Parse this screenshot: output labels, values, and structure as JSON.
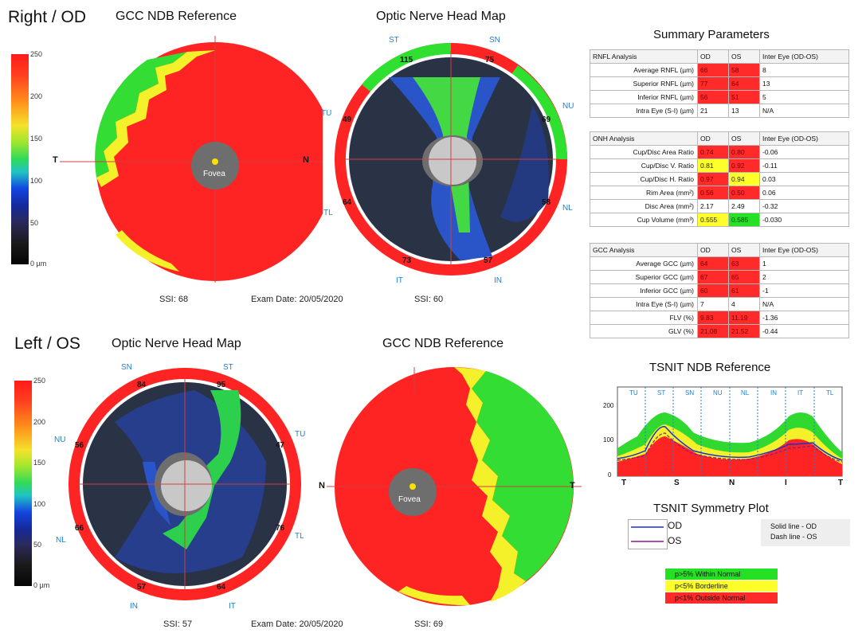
{
  "right_eye": {
    "title": "Right / OD",
    "gcc_panel": {
      "title": "GCC NDB Reference",
      "T": "T",
      "N": "N",
      "fovea": "Fovea",
      "ssi": "SSI: 68"
    },
    "onh_panel": {
      "title": "Optic Nerve Head Map",
      "ssi": "SSI: 60",
      "sectors": {
        "ST": "ST",
        "SN": "SN",
        "NU": "NU",
        "NL": "NL",
        "IN": "IN",
        "IT": "IT",
        "TL": "TL",
        "TU": "TU"
      },
      "values": {
        "top_left": "115",
        "top_right": "75",
        "right_upper": "69",
        "right_lower": "58",
        "bottom_right": "57",
        "bottom_left": "73",
        "left_lower": "64",
        "left_upper": "49"
      }
    },
    "exam_date": "Exam Date: 20/05/2020"
  },
  "left_eye": {
    "title": "Left / OS",
    "onh_panel": {
      "title": "Optic Nerve Head Map",
      "ssi": "SSI: 57",
      "sectors": {
        "SN": "SN",
        "ST": "ST",
        "TU": "TU",
        "TL": "TL",
        "IT": "IT",
        "IN": "IN",
        "NL": "NL",
        "NU": "NU"
      },
      "values": {
        "top_left": "84",
        "top_right": "95",
        "right_upper": "47",
        "right_lower": "76",
        "bottom_right": "64",
        "bottom_left": "57",
        "left_lower": "66",
        "left_upper": "56"
      }
    },
    "gcc_panel": {
      "title": "GCC NDB Reference",
      "N": "N",
      "T": "T",
      "fovea": "Fovea",
      "ssi": "SSI: 69"
    },
    "exam_date": "Exam Date: 20/05/2020"
  },
  "colorbar_labels": [
    "250",
    "200",
    "150",
    "100",
    "50",
    "0 µm"
  ],
  "summary": {
    "title": "Summary Parameters",
    "rnfl": {
      "header": [
        "RNFL Analysis",
        "OD",
        "OS",
        "Inter Eye (OD-OS)"
      ],
      "rows": [
        {
          "label": "Average RNFL (µm)",
          "od": "66",
          "os": "58",
          "diff": "8",
          "od_c": "red",
          "os_c": "red"
        },
        {
          "label": "Superior RNFL (µm)",
          "od": "77",
          "os": "64",
          "diff": "13",
          "od_c": "red",
          "os_c": "red"
        },
        {
          "label": "Inferior RNFL (µm)",
          "od": "56",
          "os": "51",
          "diff": "5",
          "od_c": "red",
          "os_c": "red"
        },
        {
          "label": "Intra Eye (S-I) (µm)",
          "od": "21",
          "os": "13",
          "diff": "N/A",
          "od_c": "plain",
          "os_c": "plain"
        }
      ]
    },
    "onh": {
      "header": [
        "ONH Analysis",
        "OD",
        "OS",
        "Inter Eye (OD-OS)"
      ],
      "rows": [
        {
          "label": "Cup/Disc Area Ratio",
          "od": "0.74",
          "os": "0.80",
          "diff": "-0.06",
          "od_c": "red",
          "os_c": "red"
        },
        {
          "label": "Cup/Disc V. Ratio",
          "od": "0.81",
          "os": "0.92",
          "diff": "-0.11",
          "od_c": "yel",
          "os_c": "red"
        },
        {
          "label": "Cup/Disc H. Ratio",
          "od": "0.97",
          "os": "0.94",
          "diff": "0.03",
          "od_c": "red",
          "os_c": "yel"
        },
        {
          "label": "Rim Area (mm²)",
          "od": "0.56",
          "os": "0.50",
          "diff": "0.06",
          "od_c": "red",
          "os_c": "red"
        },
        {
          "label": "Disc Area (mm²)",
          "od": "2.17",
          "os": "2.49",
          "diff": "-0.32",
          "od_c": "plain",
          "os_c": "plain"
        },
        {
          "label": "Cup Volume (mm³)",
          "od": "0.555",
          "os": "0.585",
          "diff": "-0.030",
          "od_c": "yel",
          "os_c": "grn"
        }
      ]
    },
    "gcc": {
      "header": [
        "GCC Analysis",
        "OD",
        "OS",
        "Inter Eye (OD-OS)"
      ],
      "rows": [
        {
          "label": "Average GCC (µm)",
          "od": "64",
          "os": "63",
          "diff": "1",
          "od_c": "red",
          "os_c": "red"
        },
        {
          "label": "Superior GCC (µm)",
          "od": "67",
          "os": "65",
          "diff": "2",
          "od_c": "red",
          "os_c": "red"
        },
        {
          "label": "Inferior GCC (µm)",
          "od": "60",
          "os": "61",
          "diff": "-1",
          "od_c": "red",
          "os_c": "red"
        },
        {
          "label": "Intra Eye (S-I) (µm)",
          "od": "7",
          "os": "4",
          "diff": "N/A",
          "od_c": "plain",
          "os_c": "plain"
        },
        {
          "label": "FLV (%)",
          "od": "9.83",
          "os": "11.19",
          "diff": "-1.36",
          "od_c": "red",
          "os_c": "red"
        },
        {
          "label": "GLV (%)",
          "od": "21.08",
          "os": "21.52",
          "diff": "-0.44",
          "od_c": "red",
          "os_c": "red"
        }
      ]
    }
  },
  "tsnit": {
    "title": "TSNIT NDB Reference",
    "sectors": [
      "TU",
      "ST",
      "SN",
      "NU",
      "NL",
      "IN",
      "IT",
      "TL"
    ],
    "x_labels": [
      "T",
      "S",
      "N",
      "I",
      "T"
    ],
    "y_labels": [
      "200",
      "100",
      "0"
    ]
  },
  "symmetry": {
    "title": "TSNIT Symmetry Plot",
    "od_label": "OD",
    "os_label": "OS",
    "solid_note": "Solid line - OD",
    "dash_note": "Dash line - OS",
    "od_color": "#1a2fd6",
    "os_color": "#8a1a8a"
  },
  "categories": [
    {
      "text": "p>5% Within Normal",
      "color": "#25e025"
    },
    {
      "text": "p<5% Borderline",
      "color": "#ffff2a"
    },
    {
      "text": "p<1% Outside Normal",
      "color": "#ff2a2a"
    }
  ]
}
